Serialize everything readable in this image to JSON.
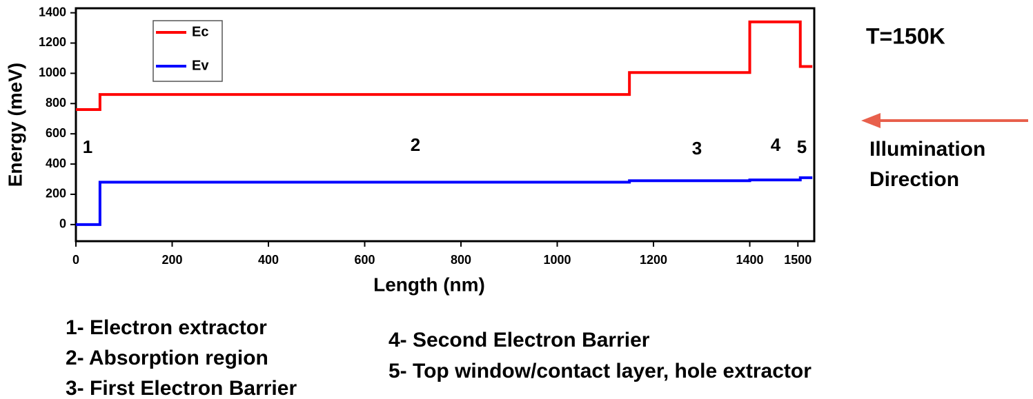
{
  "chart_data": {
    "type": "line",
    "x_label": "Length (nm)",
    "y_label": "Energy (meV)",
    "x": [
      0,
      50,
      50,
      1150,
      1150,
      1400,
      1400,
      1505,
      1505,
      1530
    ],
    "series": [
      {
        "name": "Ec",
        "color": "#ff0000",
        "values": [
          760,
          760,
          860,
          860,
          1005,
          1005,
          1340,
          1340,
          1045,
          1045
        ]
      },
      {
        "name": "Ev",
        "color": "#0000ff",
        "values": [
          0,
          0,
          280,
          280,
          290,
          290,
          295,
          295,
          310,
          310
        ]
      }
    ],
    "xlim": [
      0,
      1534
    ],
    "xticks": [
      0,
      200,
      400,
      600,
      800,
      1000,
      1200,
      1400,
      1500
    ],
    "ylim": [
      -110,
      1430
    ],
    "yticks": [
      0,
      200,
      400,
      600,
      800,
      1000,
      1200,
      1400
    ],
    "annotations": [
      "1",
      "2",
      "3",
      "4",
      "5"
    ],
    "temperature": "T=150K",
    "illumination": [
      "Illumination",
      "Direction"
    ],
    "notes": [
      "1- Electron extractor",
      "2- Absorption region",
      "3- First Electron Barrier",
      "4- Second Electron Barrier",
      "5- Top window/contact layer, hole extractor"
    ]
  }
}
